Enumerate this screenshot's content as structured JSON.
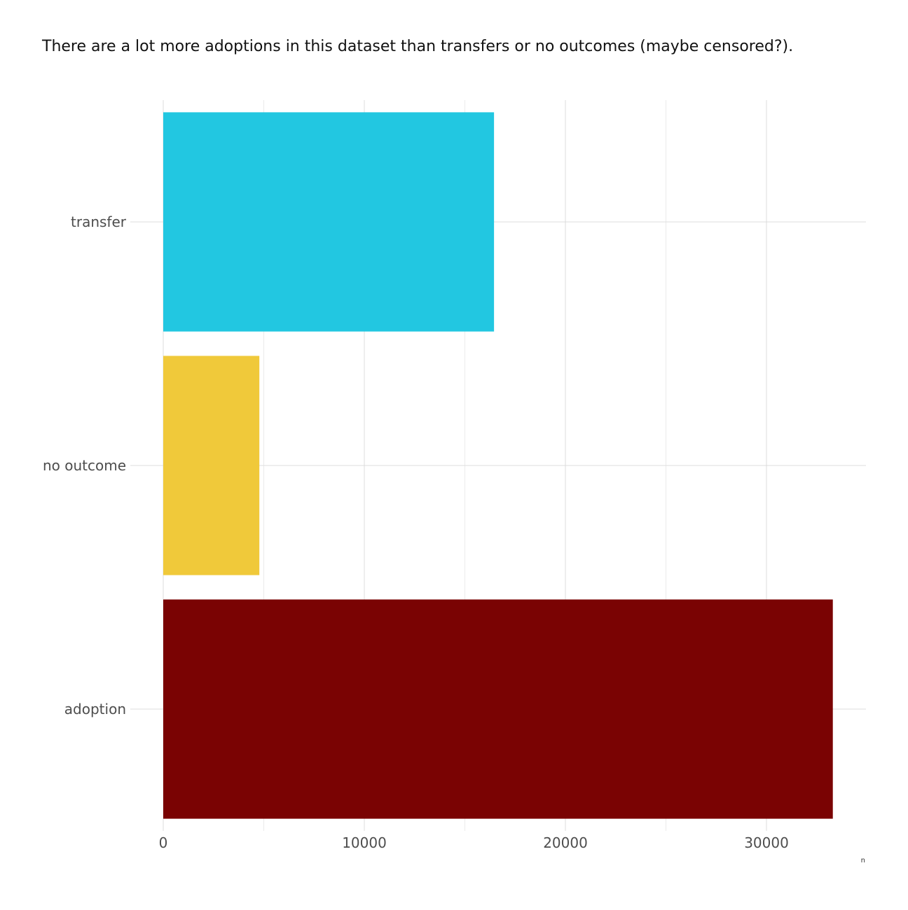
{
  "chart_data": {
    "type": "bar",
    "orientation": "horizontal",
    "title": "There are a lot more adoptions in this dataset than transfers or no outcomes (maybe censored?).",
    "xlabel": "n",
    "ylabel": "",
    "categories": [
      "transfer",
      "no outcome",
      "adoption"
    ],
    "values": [
      16450,
      4780,
      33300
    ],
    "colors": [
      "#22C7E1",
      "#F0C93A",
      "#7A0303"
    ],
    "xlim": [
      0,
      34950
    ],
    "xticks": [
      0,
      10000,
      20000,
      30000
    ],
    "xtick_labels": [
      "0",
      "10000",
      "20000",
      "30000"
    ],
    "grid": true,
    "legend": "none"
  }
}
